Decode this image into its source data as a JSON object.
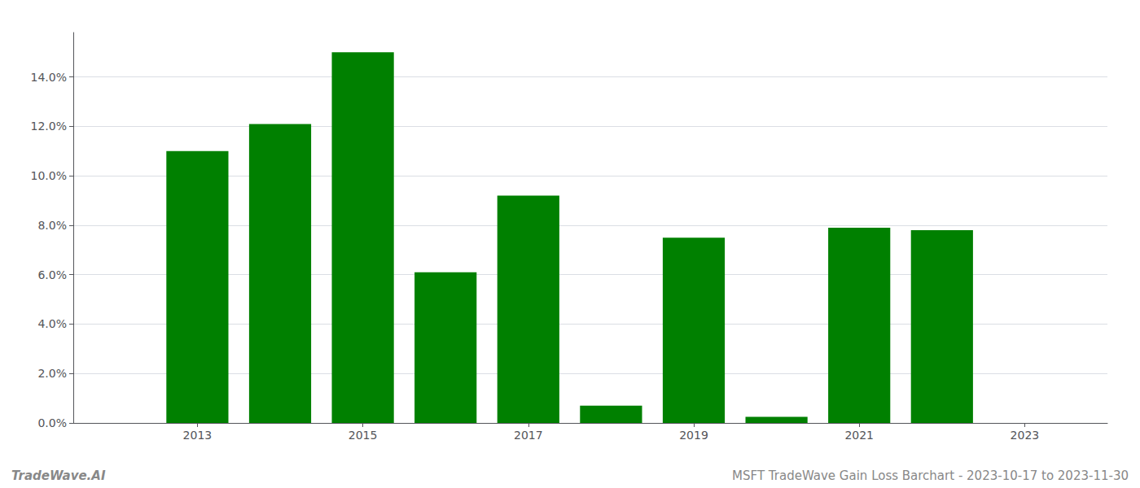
{
  "chart_data": {
    "type": "bar",
    "x": [
      2013,
      2014,
      2015,
      2016,
      2017,
      2018,
      2019,
      2020,
      2021,
      2022
    ],
    "values": [
      0.11,
      0.121,
      0.15,
      0.061,
      0.092,
      0.007,
      0.075,
      0.0025,
      0.079,
      0.078
    ],
    "color": "#008000",
    "xlim": [
      2011.5,
      2024.0
    ],
    "xticks": [
      2013,
      2015,
      2017,
      2019,
      2021,
      2023
    ],
    "ylim": [
      0,
      0.158
    ],
    "yticks": [
      {
        "value": 0,
        "label": "0.0%"
      },
      {
        "value": 0.02,
        "label": "2.0%"
      },
      {
        "value": 0.04,
        "label": "4.0%"
      },
      {
        "value": 0.06,
        "label": "6.0%"
      },
      {
        "value": 0.08,
        "label": "8.0%"
      },
      {
        "value": 0.1,
        "label": "10.0%"
      },
      {
        "value": 0.12,
        "label": "12.0%"
      },
      {
        "value": 0.14,
        "label": "14.0%"
      }
    ],
    "grid": true,
    "annotations": [
      "TradeWave.AI",
      "MSFT TradeWave Gain Loss Barchart - 2023-10-17 to 2023-11-30"
    ]
  }
}
